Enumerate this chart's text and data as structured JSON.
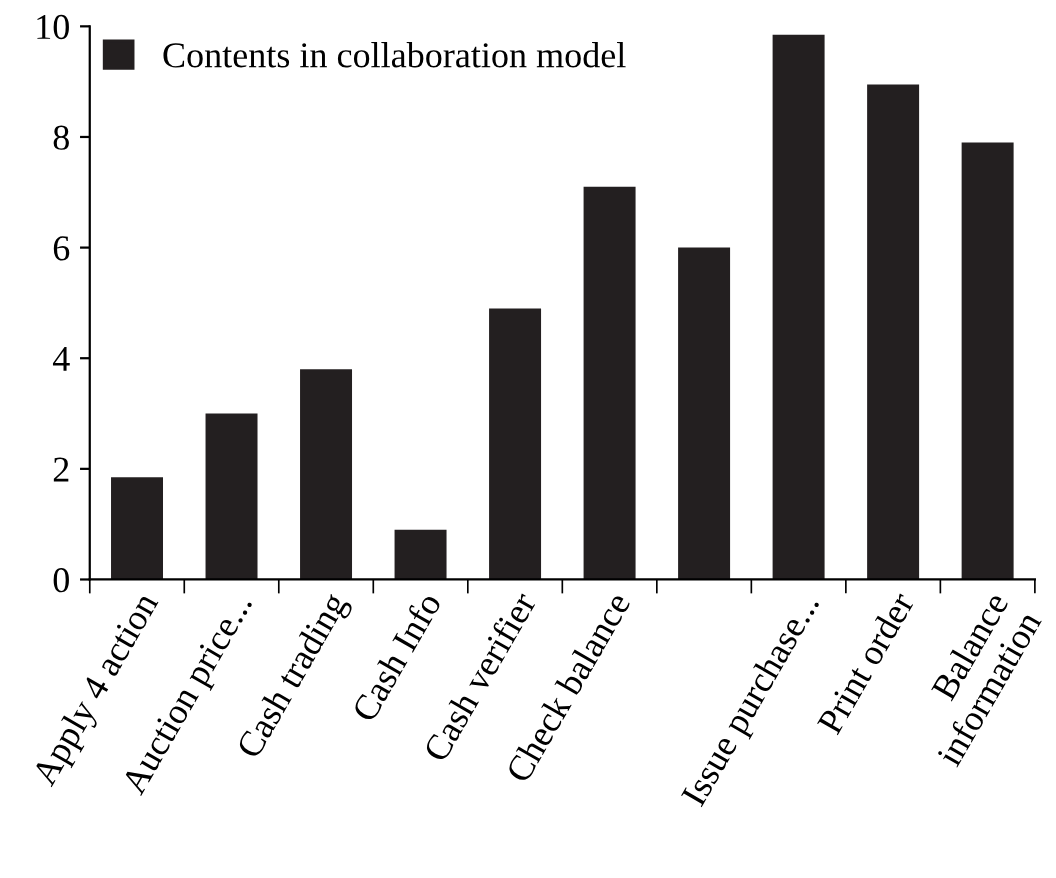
{
  "chart_data": {
    "type": "bar",
    "categories": [
      "Apply 4 action",
      "Auction price...",
      "Cash trading",
      "Cash Info",
      "Cash verifier",
      "Check balance",
      null,
      "Issue purchase...",
      "Print order",
      "Balance\ninformation"
    ],
    "series": [
      {
        "name": "Contents in collaboration model",
        "color": "#231f20",
        "values": [
          1.85,
          3.0,
          3.8,
          0.9,
          4.9,
          7.1,
          6.0,
          9.85,
          8.95,
          7.9
        ]
      }
    ],
    "ylim": [
      0,
      10
    ],
    "yticks": [
      0,
      2,
      4,
      6,
      8,
      10
    ],
    "grid": false,
    "legend": "top left"
  }
}
